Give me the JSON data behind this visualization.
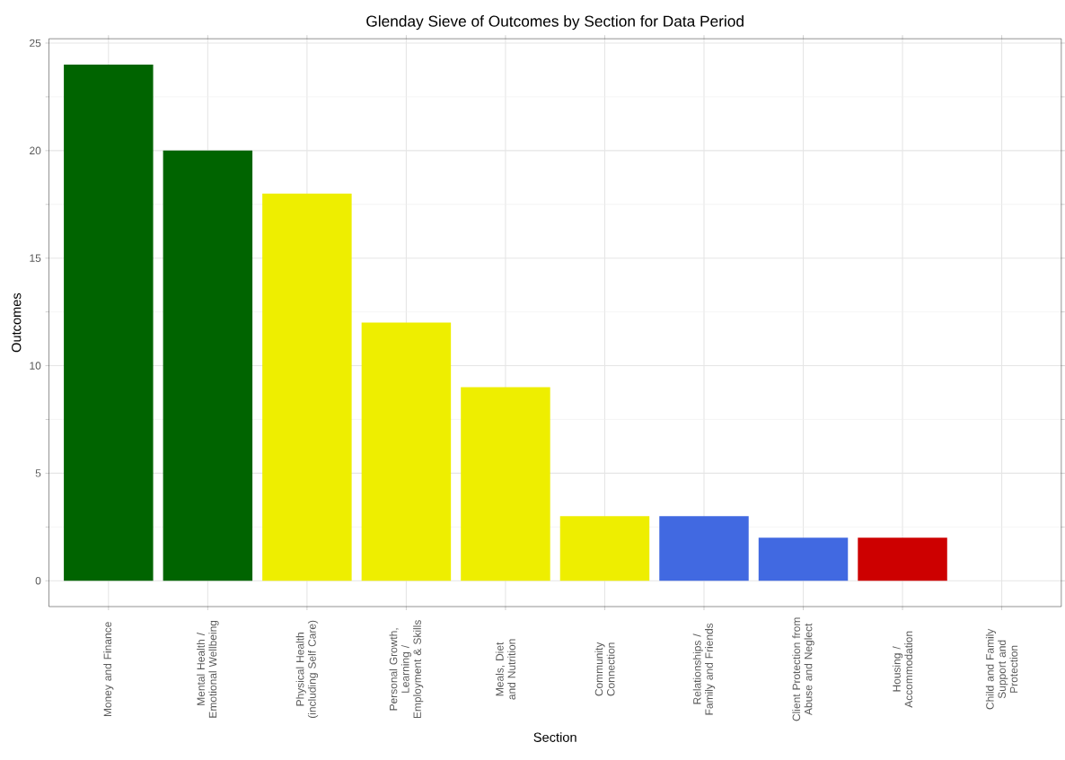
{
  "chart_data": {
    "type": "bar",
    "title": "Glenday Sieve of Outcomes by Section for Data Period",
    "xlabel": "Section",
    "ylabel": "Outcomes",
    "categories": [
      "Money and Finance",
      "Mental Health / Emotional Wellbeing",
      "Physical Health (including Self Care)",
      "Personal Growth, Learning / Employment & Skills",
      "Meals, Diet and Nutrition",
      "Community Connection",
      "Relationships / Family and Friends",
      "Client Protection from Abuse and Neglect",
      "Housing / Accommodation",
      "Child and Family Support and Protection"
    ],
    "values": [
      24,
      20,
      18,
      12,
      9,
      3,
      3,
      2,
      2,
      0
    ],
    "colors": [
      "#006400",
      "#006400",
      "#eeee00",
      "#eeee00",
      "#eeee00",
      "#eeee00",
      "#4169e1",
      "#4169e1",
      "#cd0000",
      "#cd0000"
    ],
    "ylim": [
      -1.2,
      25.2
    ],
    "yticks": [
      0,
      5,
      10,
      15,
      20,
      25
    ],
    "grid": true
  }
}
